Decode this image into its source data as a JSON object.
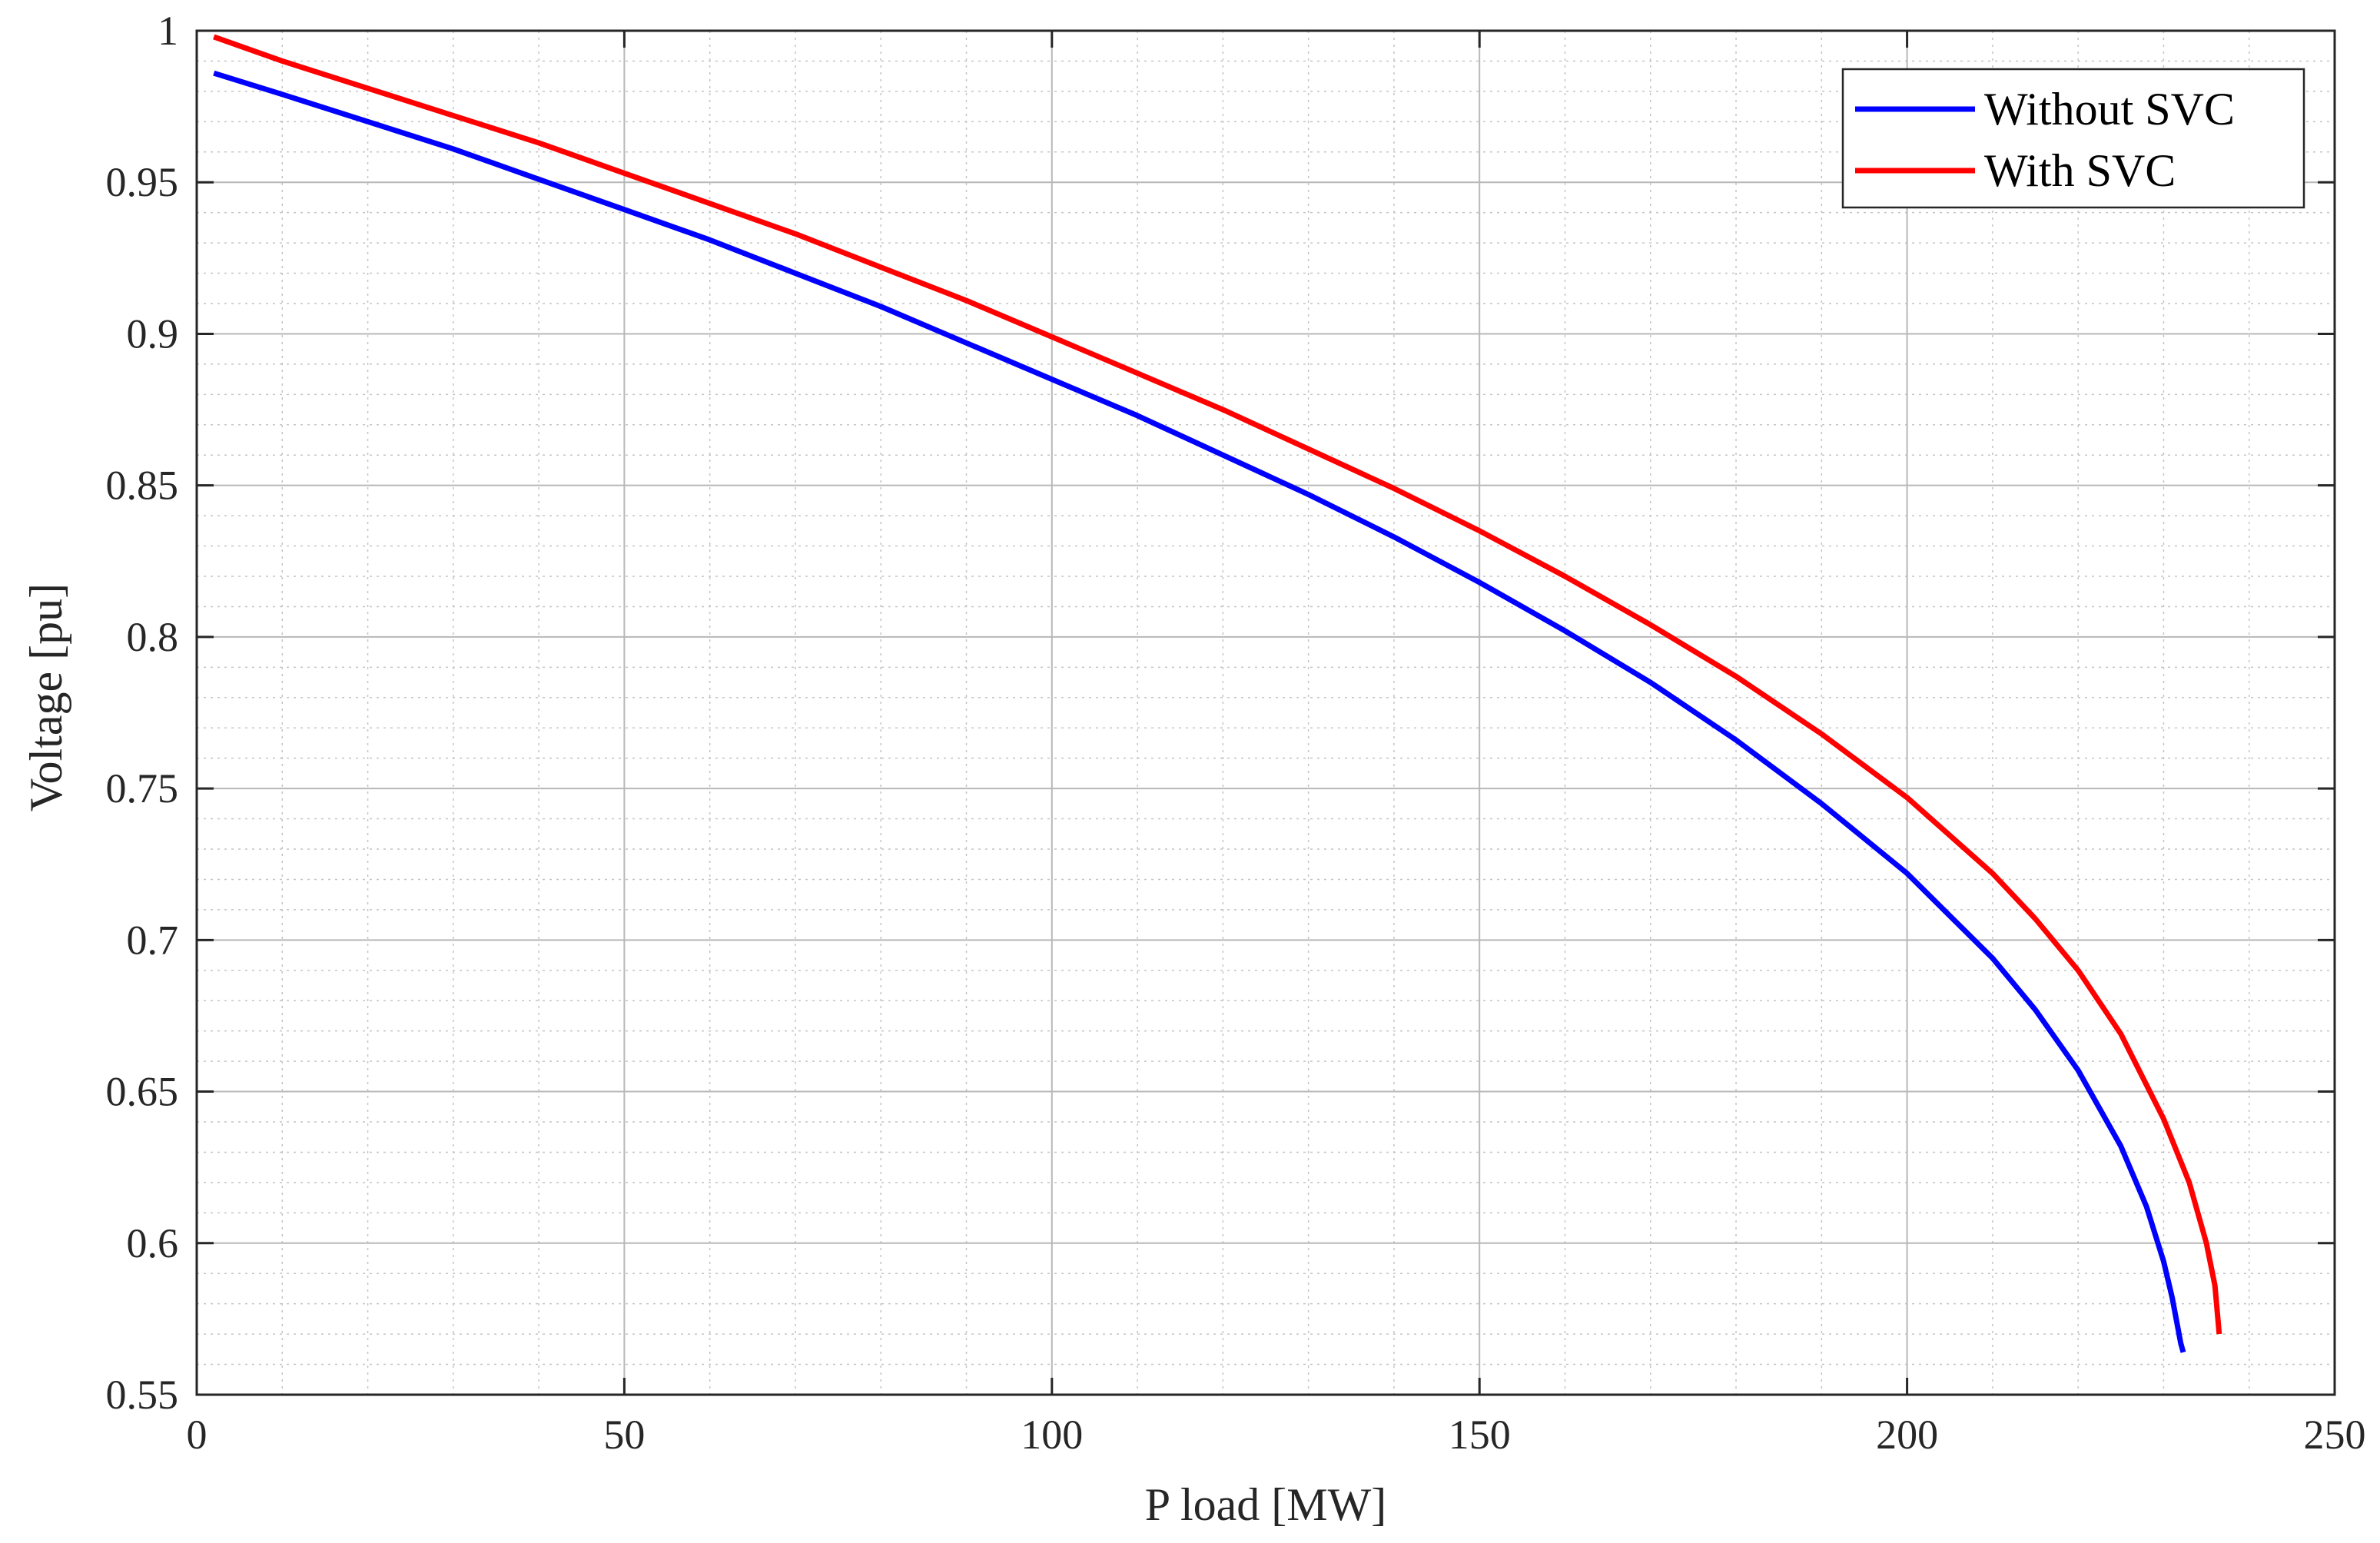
{
  "chart_data": {
    "type": "line",
    "title": "",
    "xlabel": "P load [MW]",
    "ylabel": "Voltage [pu]",
    "xlim": [
      0,
      250
    ],
    "ylim": [
      0.55,
      1
    ],
    "xticks": [
      0,
      50,
      100,
      150,
      200,
      250
    ],
    "xtick_labels": [
      "0",
      "50",
      "100",
      "150",
      "200",
      "250"
    ],
    "yticks": [
      0.55,
      0.6,
      0.65,
      0.7,
      0.75,
      0.8,
      0.85,
      0.9,
      0.95,
      1
    ],
    "ytick_labels": [
      "0.55",
      "0.6",
      "0.65",
      "0.7",
      "0.75",
      "0.8",
      "0.85",
      "0.9",
      "0.95",
      "1"
    ],
    "grid": "major and minor",
    "legend_position": "top-right",
    "series": [
      {
        "name": "Without SVC",
        "color": "#0000ff",
        "x": [
          2,
          10,
          20,
          30,
          40,
          50,
          60,
          70,
          80,
          90,
          100,
          110,
          120,
          130,
          140,
          150,
          160,
          170,
          180,
          190,
          200,
          210,
          215,
          220,
          225,
          228,
          230,
          231,
          232,
          232.3
        ],
        "y": [
          0.986,
          0.979,
          0.97,
          0.961,
          0.951,
          0.941,
          0.931,
          0.92,
          0.909,
          0.897,
          0.885,
          0.873,
          0.86,
          0.847,
          0.833,
          0.818,
          0.802,
          0.785,
          0.766,
          0.745,
          0.722,
          0.694,
          0.677,
          0.657,
          0.632,
          0.612,
          0.594,
          0.582,
          0.567,
          0.564
        ]
      },
      {
        "name": "With SVC",
        "color": "#ff0000",
        "x": [
          2,
          10,
          20,
          30,
          40,
          50,
          60,
          70,
          80,
          90,
          100,
          110,
          120,
          130,
          140,
          150,
          160,
          170,
          180,
          190,
          200,
          210,
          215,
          220,
          225,
          230,
          233,
          235,
          236,
          236.5
        ],
        "y": [
          0.998,
          0.99,
          0.981,
          0.972,
          0.963,
          0.953,
          0.943,
          0.933,
          0.922,
          0.911,
          0.899,
          0.887,
          0.875,
          0.862,
          0.849,
          0.835,
          0.82,
          0.804,
          0.787,
          0.768,
          0.747,
          0.722,
          0.707,
          0.69,
          0.669,
          0.641,
          0.62,
          0.6,
          0.586,
          0.57
        ]
      }
    ]
  }
}
